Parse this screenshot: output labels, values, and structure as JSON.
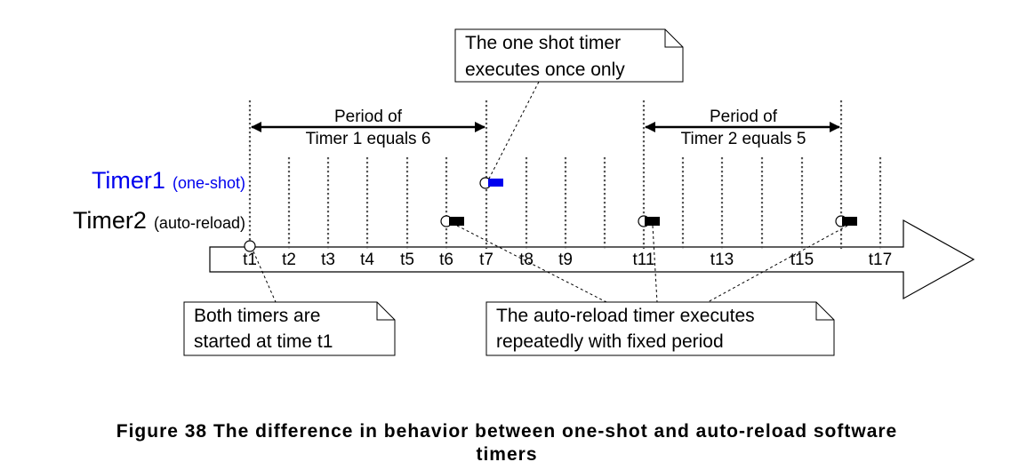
{
  "notes": {
    "one_shot_line1": "The one shot timer",
    "one_shot_line2": "executes once only",
    "start_line1": "Both timers are",
    "start_line2": "started at time t1",
    "auto_line1": "The auto-reload timer executes",
    "auto_line2": "repeatedly with fixed period"
  },
  "periods": {
    "timer1_line1": "Period of",
    "timer1_line2": "Timer 1 equals 6",
    "timer2_line1": "Period of",
    "timer2_line2": "Timer 2 equals 5"
  },
  "timers": {
    "timer1_name": "Timer1",
    "timer1_type": "(one-shot)",
    "timer2_name": "Timer2",
    "timer2_type": "(auto-reload)"
  },
  "ticks": [
    "t1",
    "t2",
    "t3",
    "t4",
    "t5",
    "t6",
    "t7",
    "t8",
    "t9",
    "t11",
    "t13",
    "t15",
    "t17"
  ],
  "caption": {
    "line1": "Figure 38 The difference in behavior between one-shot and auto-reload software",
    "line2": "timers"
  },
  "colors": {
    "timer1": "#0000ee",
    "timer2": "#000000"
  }
}
